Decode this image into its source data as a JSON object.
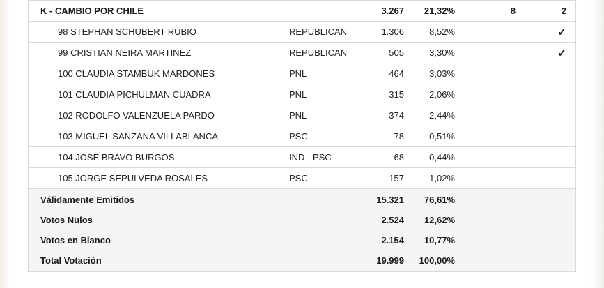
{
  "pact": {
    "label": "K - CAMBIO POR CHILE",
    "votes": "3.267",
    "percent": "21,32%",
    "col_a": "8",
    "col_b": "2"
  },
  "candidates": [
    {
      "name": "98 STEPHAN SCHUBERT RUBIO",
      "party": "REPUBLICAN",
      "votes": "1.306",
      "percent": "8,52%",
      "elected": true
    },
    {
      "name": "99 CRISTIAN NEIRA MARTINEZ",
      "party": "REPUBLICAN",
      "votes": "505",
      "percent": "3,30%",
      "elected": true
    },
    {
      "name": "100 CLAUDIA STAMBUK MARDONES",
      "party": "PNL",
      "votes": "464",
      "percent": "3,03%",
      "elected": false
    },
    {
      "name": "101 CLAUDIA PICHULMAN CUADRA",
      "party": "PNL",
      "votes": "315",
      "percent": "2,06%",
      "elected": false
    },
    {
      "name": "102 RODOLFO VALENZUELA PARDO",
      "party": "PNL",
      "votes": "374",
      "percent": "2,44%",
      "elected": false
    },
    {
      "name": "103 MIGUEL SANZANA VILLABLANCA",
      "party": "PSC",
      "votes": "78",
      "percent": "0,51%",
      "elected": false
    },
    {
      "name": "104 JOSE BRAVO BURGOS",
      "party": "IND - PSC",
      "votes": "68",
      "percent": "0,44%",
      "elected": false
    },
    {
      "name": "105 JORGE SEPULVEDA ROSALES",
      "party": "PSC",
      "votes": "157",
      "percent": "1,02%",
      "elected": false
    }
  ],
  "summary": [
    {
      "label": "Válidamente Emitidos",
      "votes": "15.321",
      "percent": "76,61%"
    },
    {
      "label": "Votos Nulos",
      "votes": "2.524",
      "percent": "12,62%"
    },
    {
      "label": "Votos en Blanco",
      "votes": "2.154",
      "percent": "10,77%"
    },
    {
      "label": "Total Votación",
      "votes": "19.999",
      "percent": "100,00%"
    }
  ],
  "icons": {
    "elected_check": "✓"
  },
  "colors": {
    "border": "#d9d9d9",
    "summary_bg": "#f5f5f5",
    "text": "#202124"
  }
}
